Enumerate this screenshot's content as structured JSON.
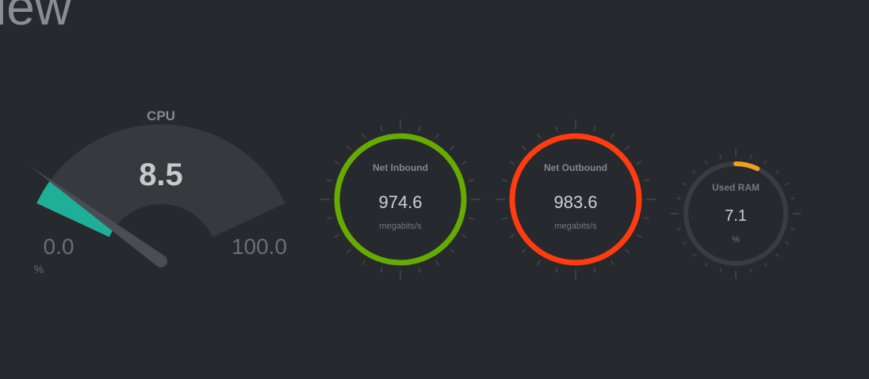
{
  "page": {
    "title": "iew"
  },
  "cpu": {
    "label": "CPU",
    "value": "8.5",
    "min": "0.0",
    "max": "100.0",
    "unit": "%",
    "percent": 8.5,
    "color": "#1fae97"
  },
  "net_inbound": {
    "label": "Net Inbound",
    "value": "974.6",
    "unit": "megabits/s",
    "color": "#65ab00"
  },
  "net_outbound": {
    "label": "Net Outbound",
    "value": "983.6",
    "unit": "megabits/s",
    "color": "#ff3b10"
  },
  "ram": {
    "label": "Used RAM",
    "value": "7.1",
    "unit": "%",
    "percent": 7.1,
    "color": "#f0a020"
  }
}
